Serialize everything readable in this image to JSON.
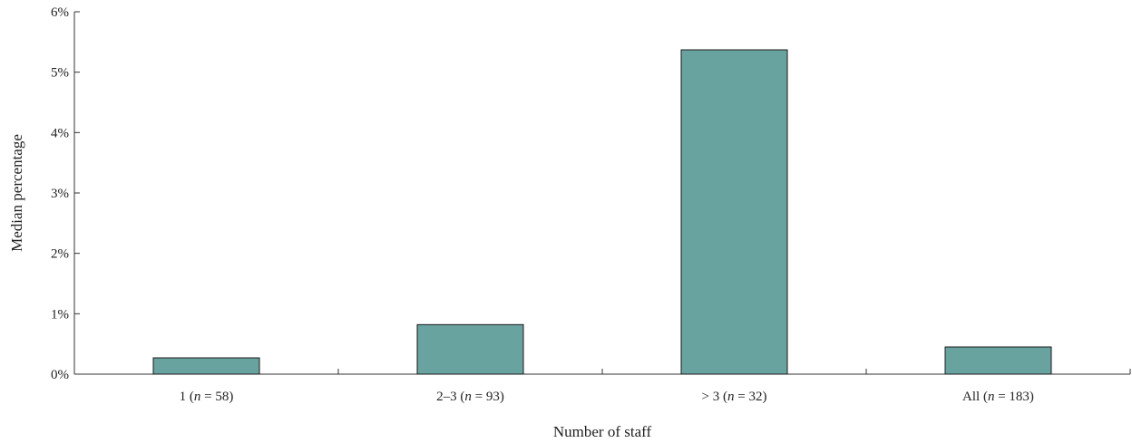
{
  "chart_data": {
    "type": "bar",
    "categories": [
      {
        "label": "1",
        "n": "58"
      },
      {
        "label": "2–3",
        "n": "93"
      },
      {
        "label": "> 3",
        "n": "32"
      },
      {
        "label": "All",
        "n": "183"
      }
    ],
    "values": [
      0.27,
      0.82,
      5.37,
      0.45
    ],
    "ylim": [
      0,
      6
    ],
    "yticks": [
      0,
      1,
      2,
      3,
      4,
      5,
      6
    ],
    "ytick_suffix": "%",
    "xlabel": "Number of staff",
    "ylabel": "Median percentage",
    "bar_color": "#68a3a0",
    "grid": false,
    "legend": "none"
  }
}
